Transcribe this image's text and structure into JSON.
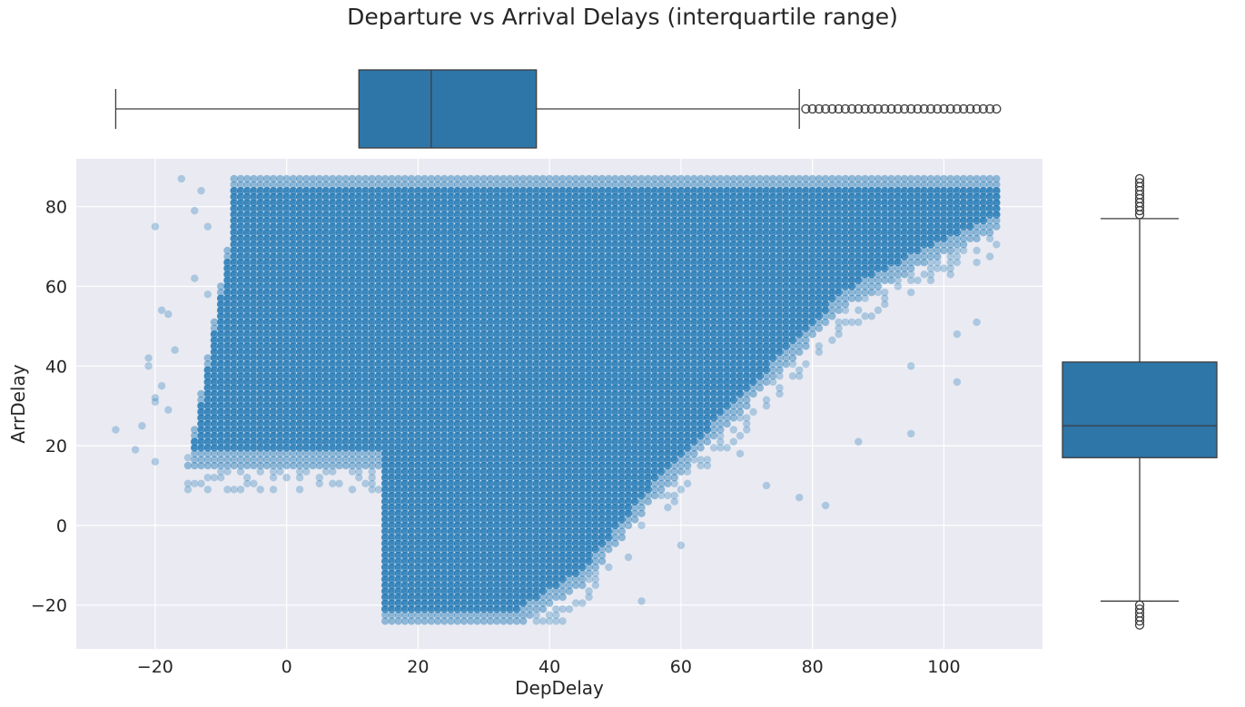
{
  "chart_data": [
    {
      "type": "scatter",
      "title": "Departure vs Arrival Delays (interquartile range)",
      "xlabel": "DepDelay",
      "ylabel": "ArrDelay",
      "xlim": [
        -32,
        115
      ],
      "ylim": [
        -31,
        92
      ],
      "xticks": [
        -20,
        0,
        20,
        40,
        60,
        80,
        100
      ],
      "yticks": [
        -20,
        0,
        20,
        40,
        60,
        80
      ],
      "grid": true,
      "series": [
        {
          "color": "#1f77b4",
          "region": {
            "x_min": -15,
            "x_max": 108,
            "y_min": -25,
            "y_max": 87,
            "upper_block_y_min": 15,
            "lower_block_x_min": 15,
            "lower_edge_points": [
              [
                15,
                -25
              ],
              [
                35,
                -25
              ],
              [
                45,
                -15
              ],
              [
                55,
                5
              ],
              [
                70,
                30
              ],
              [
                85,
                55
              ],
              [
                100,
                68
              ],
              [
                108,
                74
              ]
            ]
          },
          "outliers": [
            [
              -26,
              24
            ],
            [
              -23,
              19
            ],
            [
              -22,
              25
            ],
            [
              -20,
              16
            ],
            [
              -20,
              31
            ],
            [
              -20,
              32
            ],
            [
              -20,
              75
            ],
            [
              -21,
              40
            ],
            [
              -21,
              42
            ],
            [
              -19,
              35
            ],
            [
              -19,
              54
            ],
            [
              -18,
              53
            ],
            [
              -16,
              87
            ],
            [
              -14,
              62
            ],
            [
              -14,
              79
            ],
            [
              -13,
              84
            ],
            [
              -12,
              75
            ],
            [
              -17,
              44
            ],
            [
              -18,
              29
            ],
            [
              -15,
              17
            ],
            [
              -12,
              58
            ],
            [
              52,
              -8
            ],
            [
              54,
              -19
            ],
            [
              60,
              -5
            ],
            [
              69,
              18
            ],
            [
              73,
              10
            ],
            [
              78,
              7
            ],
            [
              82,
              5
            ],
            [
              87,
              21
            ],
            [
              95,
              23
            ],
            [
              102,
              36
            ],
            [
              95,
              40
            ],
            [
              102,
              48
            ],
            [
              105,
              51
            ]
          ]
        }
      ]
    },
    {
      "type": "box",
      "variable": "DepDelay",
      "orientation": "horizontal",
      "whisker_low": -26,
      "q1": 11,
      "median": 22,
      "q3": 38,
      "whisker_high": 78,
      "fliers": [
        79,
        80,
        81,
        82,
        83,
        84,
        85,
        86,
        87,
        88,
        89,
        90,
        91,
        92,
        93,
        94,
        95,
        96,
        97,
        98,
        99,
        100,
        101,
        102,
        103,
        104,
        105,
        106,
        107,
        108
      ],
      "color": "#2e75a8"
    },
    {
      "type": "box",
      "variable": "ArrDelay",
      "orientation": "vertical",
      "whisker_low": -19,
      "q1": 17,
      "median": 25,
      "q3": 41,
      "whisker_high": 77,
      "fliers": [
        -20,
        -21,
        -22,
        -23,
        -24,
        -25,
        78,
        79,
        80,
        81,
        82,
        83,
        84,
        85,
        86,
        87
      ],
      "color": "#2e75a8"
    }
  ]
}
